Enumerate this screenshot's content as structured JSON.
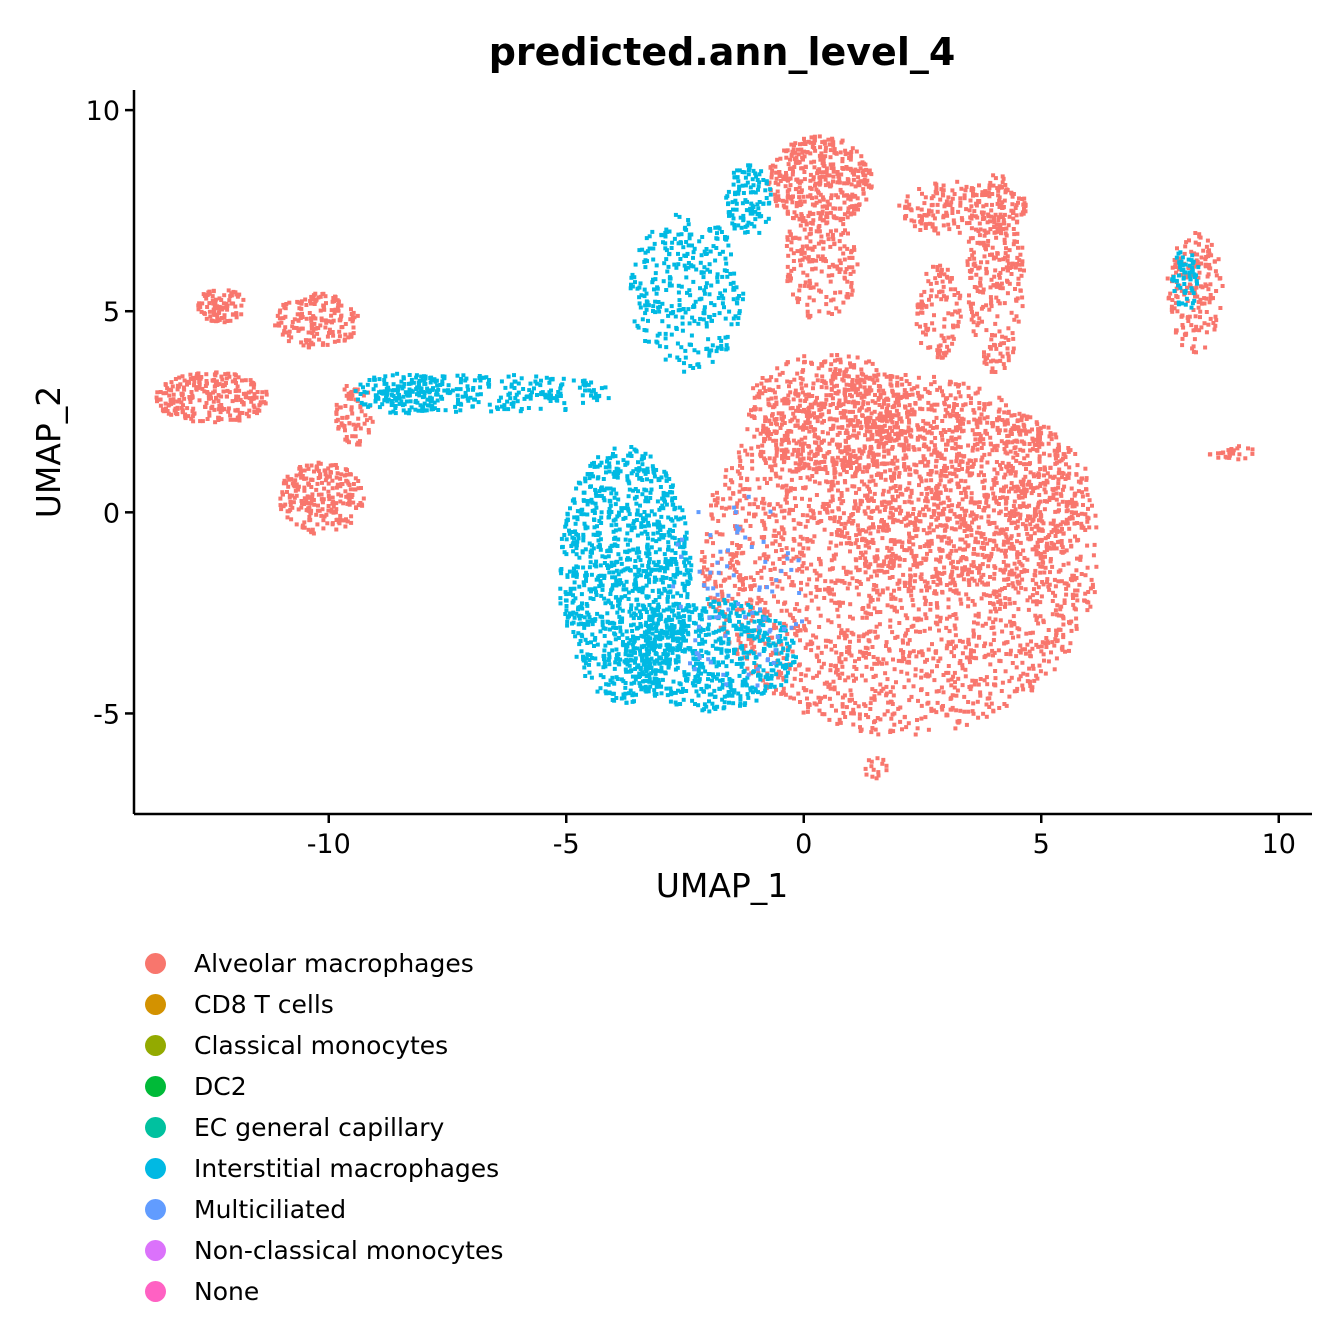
{
  "chart_data": {
    "type": "scatter",
    "title": "predicted.ann_level_4",
    "xlabel": "UMAP_1",
    "ylabel": "UMAP_2",
    "xlim": [
      -14.1,
      10.7
    ],
    "ylim": [
      -7.5,
      10.5
    ],
    "x_ticks": [
      -10,
      -5,
      0,
      5,
      10
    ],
    "x_tick_labels": [
      "-10",
      "-5",
      "0",
      "5",
      "10"
    ],
    "y_ticks": [
      -5,
      0,
      5,
      10
    ],
    "y_tick_labels": [
      "-5",
      "0",
      "5",
      "10"
    ],
    "grid": false,
    "legend_position": "bottom",
    "series": [
      {
        "name": "Alveolar macrophages",
        "color": "#F8766D",
        "regions": [
          {
            "cx": 2.0,
            "cy": -1.0,
            "rx": 4.2,
            "ry": 4.5,
            "n": 2600
          },
          {
            "cx": 3.2,
            "cy": 0.5,
            "rx": 2.8,
            "ry": 2.3,
            "n": 700
          },
          {
            "cx": 0.5,
            "cy": 2.5,
            "rx": 1.8,
            "ry": 1.5,
            "n": 500
          },
          {
            "cx": 0.3,
            "cy": 8.3,
            "rx": 1.1,
            "ry": 1.1,
            "n": 380
          },
          {
            "cx": 0.3,
            "cy": 6.2,
            "rx": 0.8,
            "ry": 1.4,
            "n": 180
          },
          {
            "cx": 4.0,
            "cy": 6.0,
            "rx": 0.6,
            "ry": 2.5,
            "n": 260
          },
          {
            "cx": 3.3,
            "cy": 7.6,
            "rx": 1.4,
            "ry": 0.7,
            "n": 200
          },
          {
            "cx": 2.8,
            "cy": 5.0,
            "rx": 0.5,
            "ry": 1.2,
            "n": 110
          },
          {
            "cx": 8.2,
            "cy": 5.5,
            "rx": 0.6,
            "ry": 1.5,
            "n": 170
          },
          {
            "cx": -12.5,
            "cy": 2.9,
            "rx": 1.2,
            "ry": 0.65,
            "n": 260
          },
          {
            "cx": -10.2,
            "cy": 0.4,
            "rx": 0.9,
            "ry": 0.9,
            "n": 240
          },
          {
            "cx": -10.3,
            "cy": 4.8,
            "rx": 0.9,
            "ry": 0.7,
            "n": 170
          },
          {
            "cx": -12.3,
            "cy": 5.2,
            "rx": 0.5,
            "ry": 0.45,
            "n": 90
          },
          {
            "cx": -9.5,
            "cy": 2.5,
            "rx": 0.4,
            "ry": 0.8,
            "n": 70
          },
          {
            "cx": 9.0,
            "cy": 1.5,
            "rx": 0.5,
            "ry": 0.2,
            "n": 25
          },
          {
            "cx": 1.5,
            "cy": -6.3,
            "rx": 0.3,
            "ry": 0.3,
            "n": 15
          }
        ]
      },
      {
        "name": "CD8 T cells",
        "color": "#D39200",
        "regions": []
      },
      {
        "name": "Classical monocytes",
        "color": "#93AA00",
        "regions": []
      },
      {
        "name": "DC2",
        "color": "#00BA38",
        "regions": []
      },
      {
        "name": "EC general capillary",
        "color": "#00C19F",
        "regions": []
      },
      {
        "name": "Interstitial macrophages",
        "color": "#00B9E3",
        "regions": [
          {
            "cx": -3.8,
            "cy": -1.5,
            "rx": 1.4,
            "ry": 3.2,
            "n": 1100
          },
          {
            "cx": -2.0,
            "cy": -3.5,
            "rx": 1.8,
            "ry": 1.4,
            "n": 600
          },
          {
            "cx": -2.5,
            "cy": 5.5,
            "rx": 1.2,
            "ry": 2.0,
            "n": 320
          },
          {
            "cx": -6.5,
            "cy": 3.0,
            "rx": 2.5,
            "ry": 0.5,
            "n": 220
          },
          {
            "cx": -8.5,
            "cy": 3.0,
            "rx": 1.0,
            "ry": 0.5,
            "n": 140
          },
          {
            "cx": -1.2,
            "cy": 7.8,
            "rx": 0.5,
            "ry": 0.9,
            "n": 110
          },
          {
            "cx": 8.0,
            "cy": 5.8,
            "rx": 0.3,
            "ry": 0.8,
            "n": 60
          }
        ]
      },
      {
        "name": "Multiciliated",
        "color": "#619CFF",
        "regions": [
          {
            "cx": -1.5,
            "cy": -2.0,
            "rx": 1.5,
            "ry": 2.5,
            "n": 80
          }
        ]
      },
      {
        "name": "Non-classical monocytes",
        "color": "#DB72FB",
        "regions": []
      },
      {
        "name": "None",
        "color": "#FF61C3",
        "regions": []
      }
    ]
  }
}
